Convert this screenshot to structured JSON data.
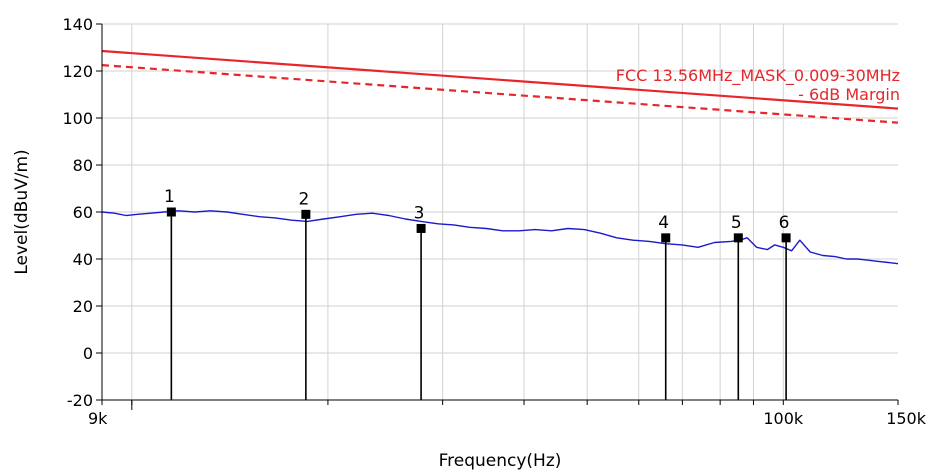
{
  "chart_data": {
    "type": "line",
    "xlabel": "Frequency(Hz)",
    "ylabel": "Level(dBuV/m)",
    "x_scale": "log",
    "xlim": [
      9000,
      150000
    ],
    "ylim": [
      -20,
      140
    ],
    "y_ticks": [
      -20,
      0,
      20,
      40,
      60,
      80,
      100,
      120,
      140
    ],
    "x_tick_labels": [
      {
        "value": 9000,
        "label": "9k"
      },
      {
        "value": 100000,
        "label": "100k"
      },
      {
        "value": 150000,
        "label": "150k"
      }
    ],
    "grid": true,
    "limit_lines": [
      {
        "label": "FCC 13.56MHz_MASK_0.009-30MHz",
        "color": "#e8262a",
        "style": "solid",
        "x": [
          9000,
          150000
        ],
        "y": [
          128.5,
          104.0
        ]
      },
      {
        "label": "- 6dB Margin",
        "color": "#e8262a",
        "style": "dashed",
        "x": [
          9000,
          150000
        ],
        "y": [
          122.5,
          98.0
        ]
      }
    ],
    "series": [
      {
        "color": "#1a1acc",
        "x": [
          9000,
          9400,
          9800,
          10200,
          10700,
          11200,
          11800,
          12500,
          13200,
          14000,
          14800,
          15700,
          16600,
          17600,
          18600,
          19700,
          20900,
          22100,
          23400,
          24800,
          26300,
          27800,
          29500,
          31200,
          33000,
          35000,
          37100,
          39300,
          41600,
          44100,
          46700,
          49500,
          52400,
          55500,
          58800,
          62300,
          66000,
          69900,
          74000,
          78400,
          83100,
          85700,
          88000,
          91000,
          94500,
          97000,
          100000,
          103000,
          106000,
          110000,
          115000,
          120000,
          125000,
          130000,
          135000,
          140000,
          145000,
          150000
        ],
        "y": [
          60,
          59.5,
          58.5,
          59,
          59.5,
          60,
          60.5,
          60,
          60.5,
          60,
          59,
          58,
          57.5,
          56.5,
          56,
          57,
          58,
          59,
          59.5,
          58.5,
          57,
          56,
          55,
          54.5,
          53.5,
          53,
          52,
          52,
          52.5,
          52,
          53,
          52.5,
          51,
          49,
          48,
          47.5,
          46.5,
          46,
          45,
          47,
          47.5,
          48,
          49,
          45,
          44,
          46,
          45,
          43.5,
          48,
          43,
          41.5,
          41,
          40,
          40,
          39.5,
          39,
          38.5,
          38
        ]
      }
    ],
    "markers": [
      {
        "label": "1",
        "x": 11500,
        "y": 60
      },
      {
        "label": "2",
        "x": 18500,
        "y": 59
      },
      {
        "label": "3",
        "x": 27800,
        "y": 53
      },
      {
        "label": "4",
        "x": 66000,
        "y": 49
      },
      {
        "label": "5",
        "x": 85300,
        "y": 49
      },
      {
        "label": "6",
        "x": 101000,
        "y": 49
      }
    ]
  }
}
